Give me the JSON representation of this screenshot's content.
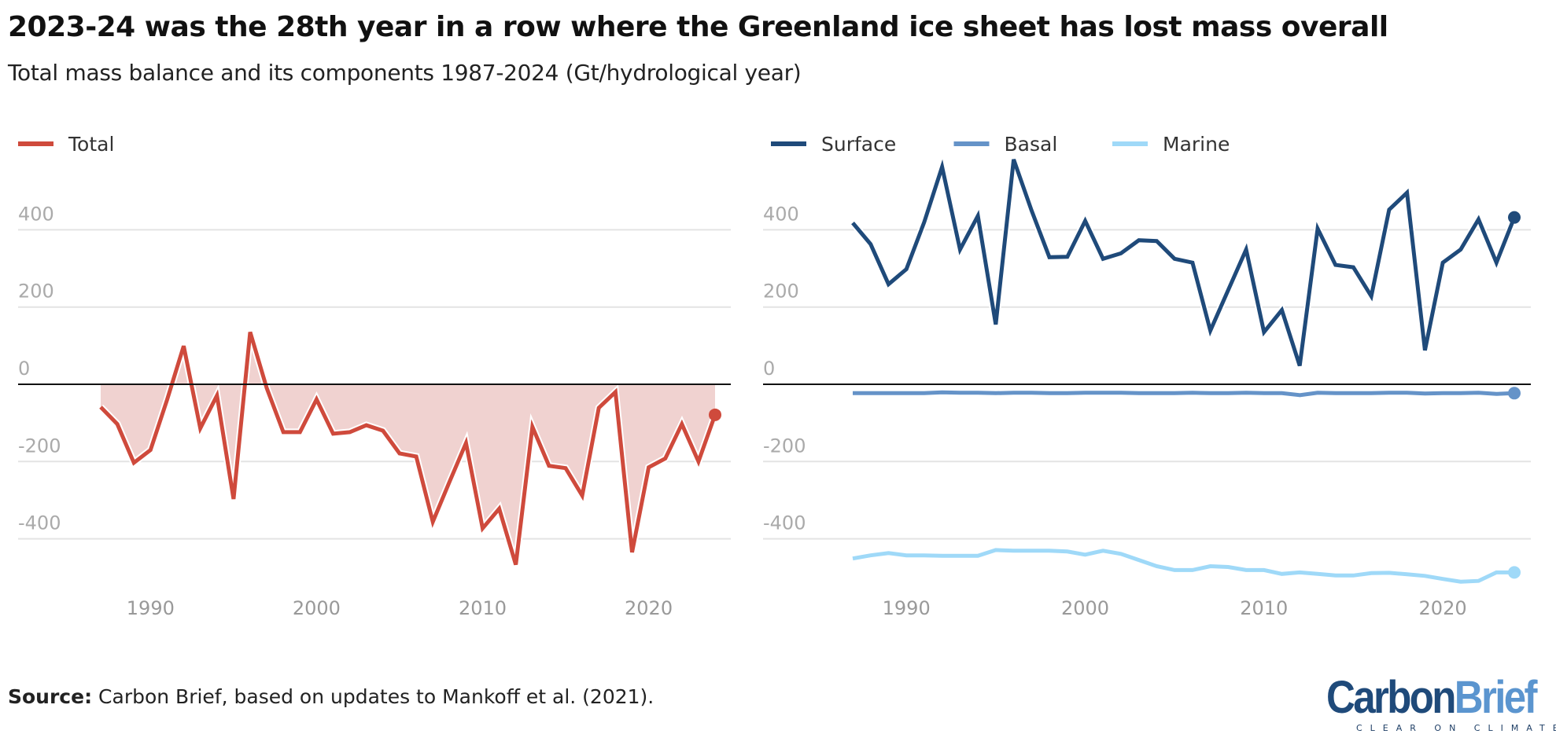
{
  "title": "2023-24 was the 28th year in a row where the Greenland ice sheet has lost mass overall",
  "subtitle": "Total mass balance and its components 1987-2024 (Gt/hydrological year)",
  "source_label": "Source:",
  "source_text": " Carbon Brief, based on updates to Mankoff et al. (2021).",
  "logo": {
    "part1": "Carbon",
    "part2": "Brief",
    "tagline": "CLEAR ON CLIMATE",
    "color1": "#1f4a7a",
    "color2": "#5b95cf"
  },
  "chart_data": [
    {
      "type": "area",
      "title": "",
      "xlabel": "",
      "ylabel": "",
      "legend": "top-left",
      "grid": true,
      "ylim": [
        -480,
        600
      ],
      "yticks": [
        "400",
        "200",
        "0",
        "-200",
        "-400"
      ],
      "xticks": [
        "1990",
        "2000",
        "2010",
        "2020"
      ],
      "x": [
        1987,
        1988,
        1989,
        1990,
        1991,
        1992,
        1993,
        1994,
        1995,
        1996,
        1997,
        1998,
        1999,
        2000,
        2001,
        2002,
        2003,
        2004,
        2005,
        2006,
        2007,
        2008,
        2009,
        2010,
        2011,
        2012,
        2013,
        2014,
        2015,
        2016,
        2017,
        2018,
        2019,
        2020,
        2021,
        2022,
        2023,
        2024
      ],
      "series": [
        {
          "name": "Total",
          "color": "#cf4a3c",
          "fill": "#f0d2d0",
          "values": [
            -59,
            -103,
            -203,
            -170,
            -40,
            99,
            -114,
            -29,
            -297,
            135,
            -10,
            -124,
            -124,
            -39,
            -128,
            -124,
            -106,
            -120,
            -179,
            -187,
            -356,
            -253,
            -152,
            -373,
            -322,
            -467,
            -110,
            -211,
            -217,
            -288,
            -61,
            -20,
            -435,
            -215,
            -192,
            -103,
            -200,
            -79
          ]
        }
      ]
    },
    {
      "type": "line",
      "title": "",
      "xlabel": "",
      "ylabel": "",
      "legend": "top-left",
      "grid": true,
      "ylim": [
        -480,
        600
      ],
      "yticks": [
        "400",
        "200",
        "0",
        "-200",
        "-400"
      ],
      "xticks": [
        "1990",
        "2000",
        "2010",
        "2020"
      ],
      "x": [
        1987,
        1988,
        1989,
        1990,
        1991,
        1992,
        1993,
        1994,
        1995,
        1996,
        1997,
        1998,
        1999,
        2000,
        2001,
        2002,
        2003,
        2004,
        2005,
        2006,
        2007,
        2008,
        2009,
        2010,
        2011,
        2012,
        2013,
        2014,
        2015,
        2016,
        2017,
        2018,
        2019,
        2020,
        2021,
        2022,
        2023,
        2024
      ],
      "series": [
        {
          "name": "Surface",
          "color": "#1f4a7a",
          "values": [
            418,
            363,
            259,
            298,
            420,
            563,
            349,
            436,
            155,
            582,
            450,
            329,
            330,
            423,
            325,
            339,
            373,
            371,
            325,
            315,
            139,
            244,
            349,
            135,
            192,
            48,
            403,
            309,
            303,
            228,
            452,
            496,
            88,
            315,
            349,
            427,
            315,
            432
          ]
        },
        {
          "name": "Basal",
          "color": "#6593c8",
          "values": [
            -23,
            -23,
            -23,
            -23,
            -23,
            -21,
            -22,
            -22,
            -23,
            -22,
            -22,
            -23,
            -23,
            -22,
            -22,
            -22,
            -23,
            -23,
            -23,
            -22,
            -23,
            -23,
            -22,
            -23,
            -23,
            -28,
            -22,
            -23,
            -23,
            -23,
            -22,
            -22,
            -24,
            -23,
            -23,
            -22,
            -25,
            -23
          ]
        },
        {
          "name": "Marine",
          "color": "#9fd9f8",
          "values": [
            -451,
            -443,
            -437,
            -443,
            -443,
            -444,
            -444,
            -444,
            -429,
            -431,
            -431,
            -431,
            -433,
            -441,
            -431,
            -439,
            -455,
            -471,
            -481,
            -481,
            -471,
            -473,
            -481,
            -481,
            -491,
            -487,
            -491,
            -495,
            -495,
            -489,
            -488,
            -492,
            -496,
            -504,
            -511,
            -509,
            -487,
            -487
          ]
        }
      ]
    }
  ]
}
